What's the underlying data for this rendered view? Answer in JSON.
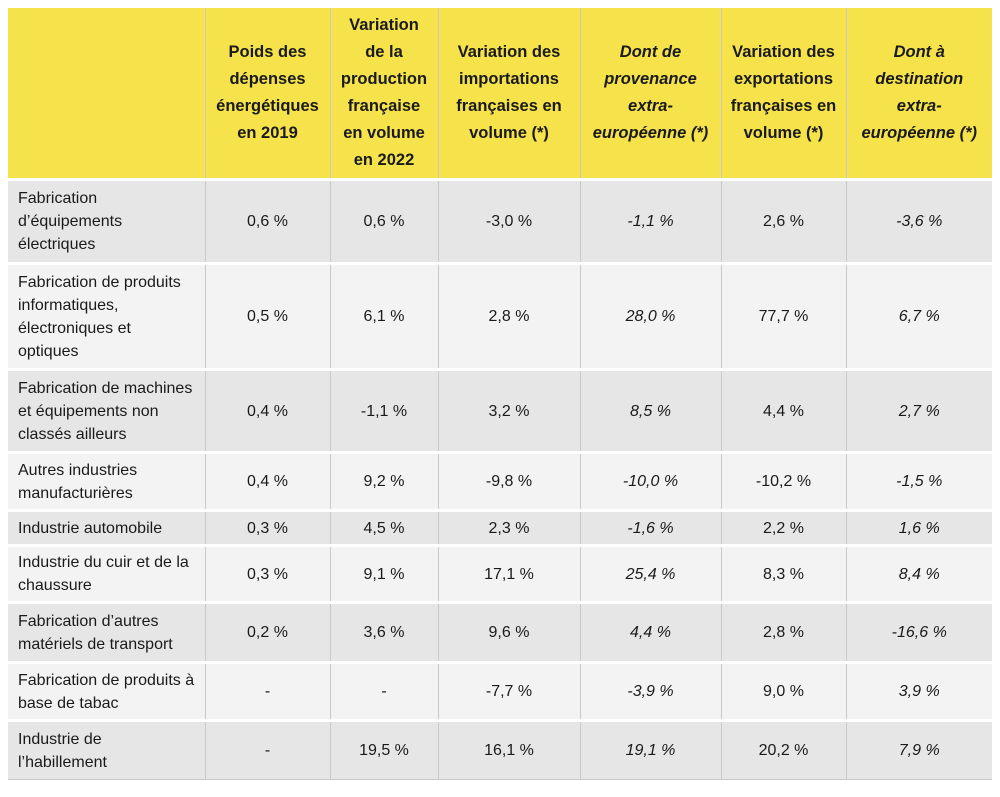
{
  "table": {
    "headers": [
      "",
      "Poids des dépenses énergétiques en 2019",
      "Variation de la production française en volume en 2022",
      "Variation des importations françaises en volume (*)",
      "Dont de provenance extra-européenne (*)",
      "Variation des exportations françaises en volume (*)",
      "Dont à destination extra-européenne (*)"
    ],
    "rows": [
      [
        "Fabrication d’équipements électriques",
        "0,6 %",
        "0,6 %",
        "-3,0 %",
        "-1,1 %",
        "2,6 %",
        "-3,6 %"
      ],
      [
        "Fabrication de produits informatiques, électroniques et optiques",
        "0,5 %",
        "6,1 %",
        "2,8 %",
        "28,0 %",
        "77,7 %",
        "6,7 %"
      ],
      [
        "Fabrication de machines et équipements non classés ailleurs",
        "0,4 %",
        "-1,1 %",
        "3,2 %",
        "8,5 %",
        "4,4 %",
        "2,7 %"
      ],
      [
        "Autres industries manufacturières",
        "0,4 %",
        "9,2 %",
        "-9,8 %",
        "-10,0 %",
        "-10,2 %",
        "-1,5 %"
      ],
      [
        "Industrie automobile",
        "0,3 %",
        "4,5 %",
        "2,3 %",
        "-1,6 %",
        "2,2 %",
        "1,6 %"
      ],
      [
        "Industrie du cuir et de la chaussure",
        "0,3 %",
        "9,1 %",
        "17,1 %",
        "25,4 %",
        "8,3 %",
        "8,4 %"
      ],
      [
        "Fabrication d’autres matériels de transport",
        "0,2 %",
        "3,6 %",
        "9,6 %",
        "4,4 %",
        "2,8 %",
        "-16,6 %"
      ],
      [
        "Fabrication de produits à base de tabac",
        "-",
        "-",
        "-7,7 %",
        "-3,9 %",
        "9,0 %",
        "3,9 %"
      ],
      [
        "Industrie de l’habillement",
        "-",
        "19,5 %",
        "16,1 %",
        "19,1 %",
        "20,2 %",
        "7,9 %"
      ]
    ]
  },
  "colors": {
    "header_bg": "#f6e34c",
    "row_dark": "#e6e6e6",
    "row_light": "#f3f3f3"
  }
}
